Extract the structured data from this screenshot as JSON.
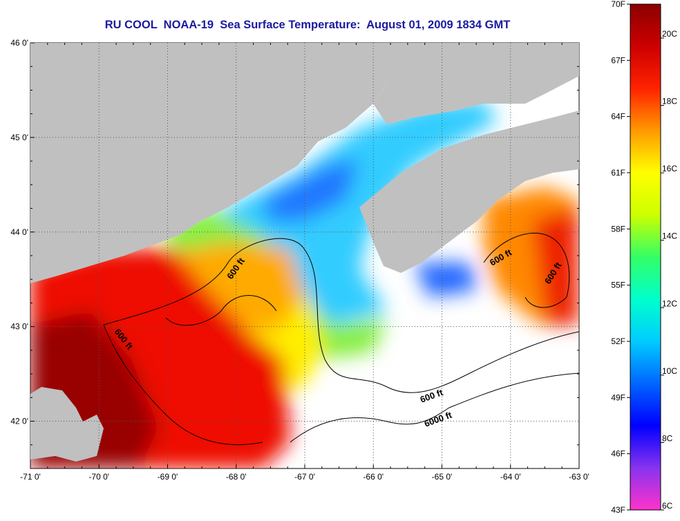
{
  "title": "RU COOL  NOAA-19  Sea Surface Temperature:  August 01, 2009 1834 GMT",
  "map": {
    "lon_range": [
      -71,
      -63
    ],
    "lat_range": [
      41.5,
      46
    ],
    "lon_ticks": [
      "-71 0'",
      "-70 0'",
      "-69 0'",
      "-68 0'",
      "-67 0'",
      "-66 0'",
      "-65 0'",
      "-64 0'",
      "-63 0'"
    ],
    "lat_ticks": [
      "46 0'",
      "45 0'",
      "44 0'",
      "43 0'",
      "42 0'"
    ],
    "contour_labels": [
      "600 ft",
      "600 ft",
      "600 ft",
      "600 ft",
      "600 ft",
      "6000 ft"
    ],
    "colors": {
      "land": "#c0c0c0",
      "nodata": "#ffffff",
      "grid": "#555555"
    }
  },
  "colorbar": {
    "f_labels": [
      "70F",
      "67F",
      "64F",
      "61F",
      "58F",
      "55F",
      "52F",
      "49F",
      "46F",
      "43F"
    ],
    "c_labels": [
      "20C",
      "18C",
      "16C",
      "14C",
      "12C",
      "10C",
      "8C",
      "6C"
    ],
    "stops": [
      "#ff33cc",
      "#8833ee",
      "#0000ff",
      "#0066ff",
      "#00ccff",
      "#00ffcc",
      "#33ff66",
      "#ccff00",
      "#ffff00",
      "#ff9900",
      "#ff2200",
      "#cc0000",
      "#8b0000"
    ]
  }
}
